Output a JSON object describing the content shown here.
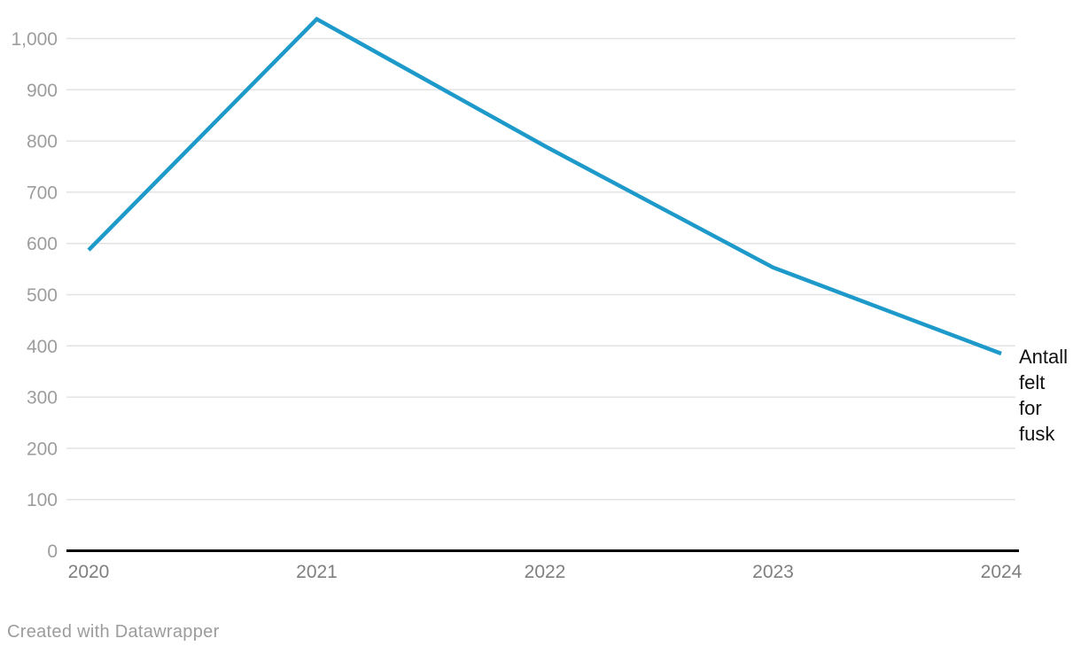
{
  "chart_data": {
    "type": "line",
    "title": "",
    "xlabel": "",
    "ylabel": "",
    "categories": [
      "2020",
      "2021",
      "2022",
      "2023",
      "2024"
    ],
    "series": [
      {
        "name": "Antall felt for fusk",
        "values": [
          587,
          1038,
          790,
          553,
          385
        ]
      }
    ],
    "series_label_wrapped": "Antall\nfelt\nfor\nfusk",
    "ylim": [
      0,
      1050
    ],
    "yticks": {
      "values": [
        0,
        100,
        200,
        300,
        400,
        500,
        600,
        700,
        800,
        900,
        1000
      ],
      "labels": [
        "0",
        "100",
        "200",
        "300",
        "400",
        "500",
        "600",
        "700",
        "800",
        "900",
        "1,000"
      ]
    },
    "grid": "horizontal-only",
    "legend": "label-at-line-end-right",
    "colors": {
      "line": "#1e9aca",
      "grid": "#e3e3e3",
      "axis_line": "#000000",
      "y_tick_text": "#9d9d9d",
      "x_tick_text": "#7f7f7f",
      "series_label_text": "#111111",
      "footer_text": "#9c9c9c",
      "background": "#ffffff"
    }
  },
  "footer": {
    "text": "Created with Datawrapper"
  }
}
